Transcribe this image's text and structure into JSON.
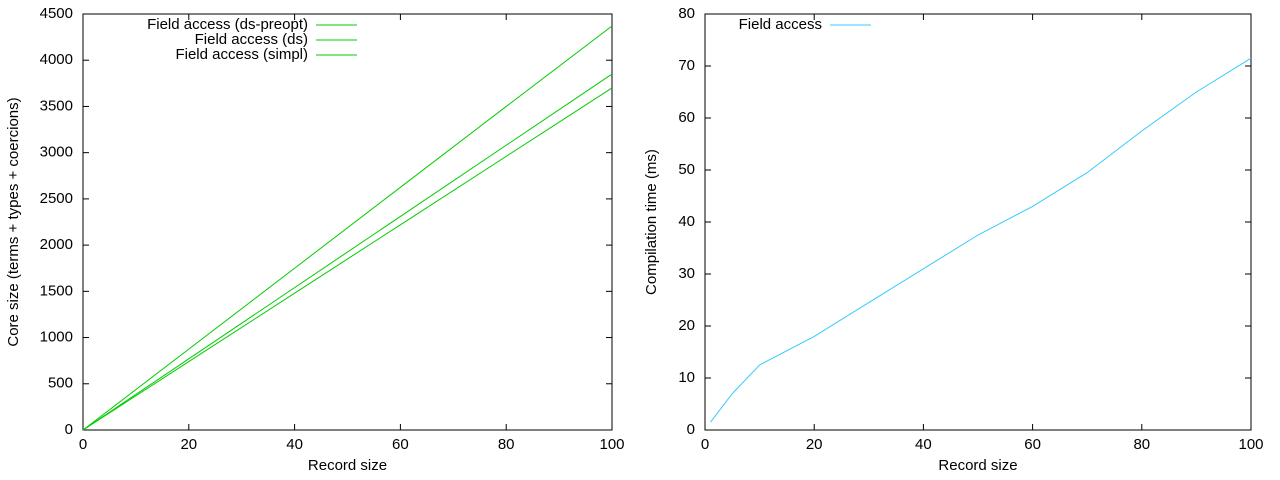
{
  "chart_data": [
    {
      "type": "line",
      "xlabel": "Record size",
      "ylabel": "Core size (terms + types + coercions)",
      "x": [
        0,
        20,
        40,
        60,
        80,
        100
      ],
      "series": [
        {
          "name": "Field access (ds-preopt)",
          "color": "#00cc00",
          "values": [
            0,
            875,
            1750,
            2625,
            3500,
            4370
          ]
        },
        {
          "name": "Field access (ds)",
          "color": "#00cc00",
          "values": [
            0,
            770,
            1540,
            2310,
            3080,
            3850
          ]
        },
        {
          "name": "Field access (simpl)",
          "color": "#00cc00",
          "values": [
            0,
            740,
            1480,
            2220,
            2960,
            3700
          ]
        }
      ],
      "xlim": [
        0,
        100
      ],
      "ylim": [
        0,
        4500
      ],
      "xticks": [
        0,
        20,
        40,
        60,
        80,
        100
      ],
      "yticks": [
        0,
        500,
        1000,
        1500,
        2000,
        2500,
        3000,
        3500,
        4000,
        4500
      ],
      "legend": "top-left"
    },
    {
      "type": "line",
      "xlabel": "Record size",
      "ylabel": "Compilation time (ms)",
      "x": [
        1,
        5,
        10,
        20,
        30,
        40,
        50,
        60,
        70,
        80,
        90,
        100
      ],
      "series": [
        {
          "name": "Field access",
          "color": "#33ccff",
          "values": [
            1.5,
            7,
            12.5,
            18,
            24.5,
            31,
            37.5,
            43,
            49.5,
            57.5,
            65,
            71.5
          ]
        }
      ],
      "xlim": [
        0,
        100
      ],
      "ylim": [
        0,
        80
      ],
      "xticks": [
        0,
        20,
        40,
        60,
        80,
        100
      ],
      "yticks": [
        0,
        10,
        20,
        30,
        40,
        50,
        60,
        70,
        80
      ],
      "legend": "top-left"
    }
  ]
}
